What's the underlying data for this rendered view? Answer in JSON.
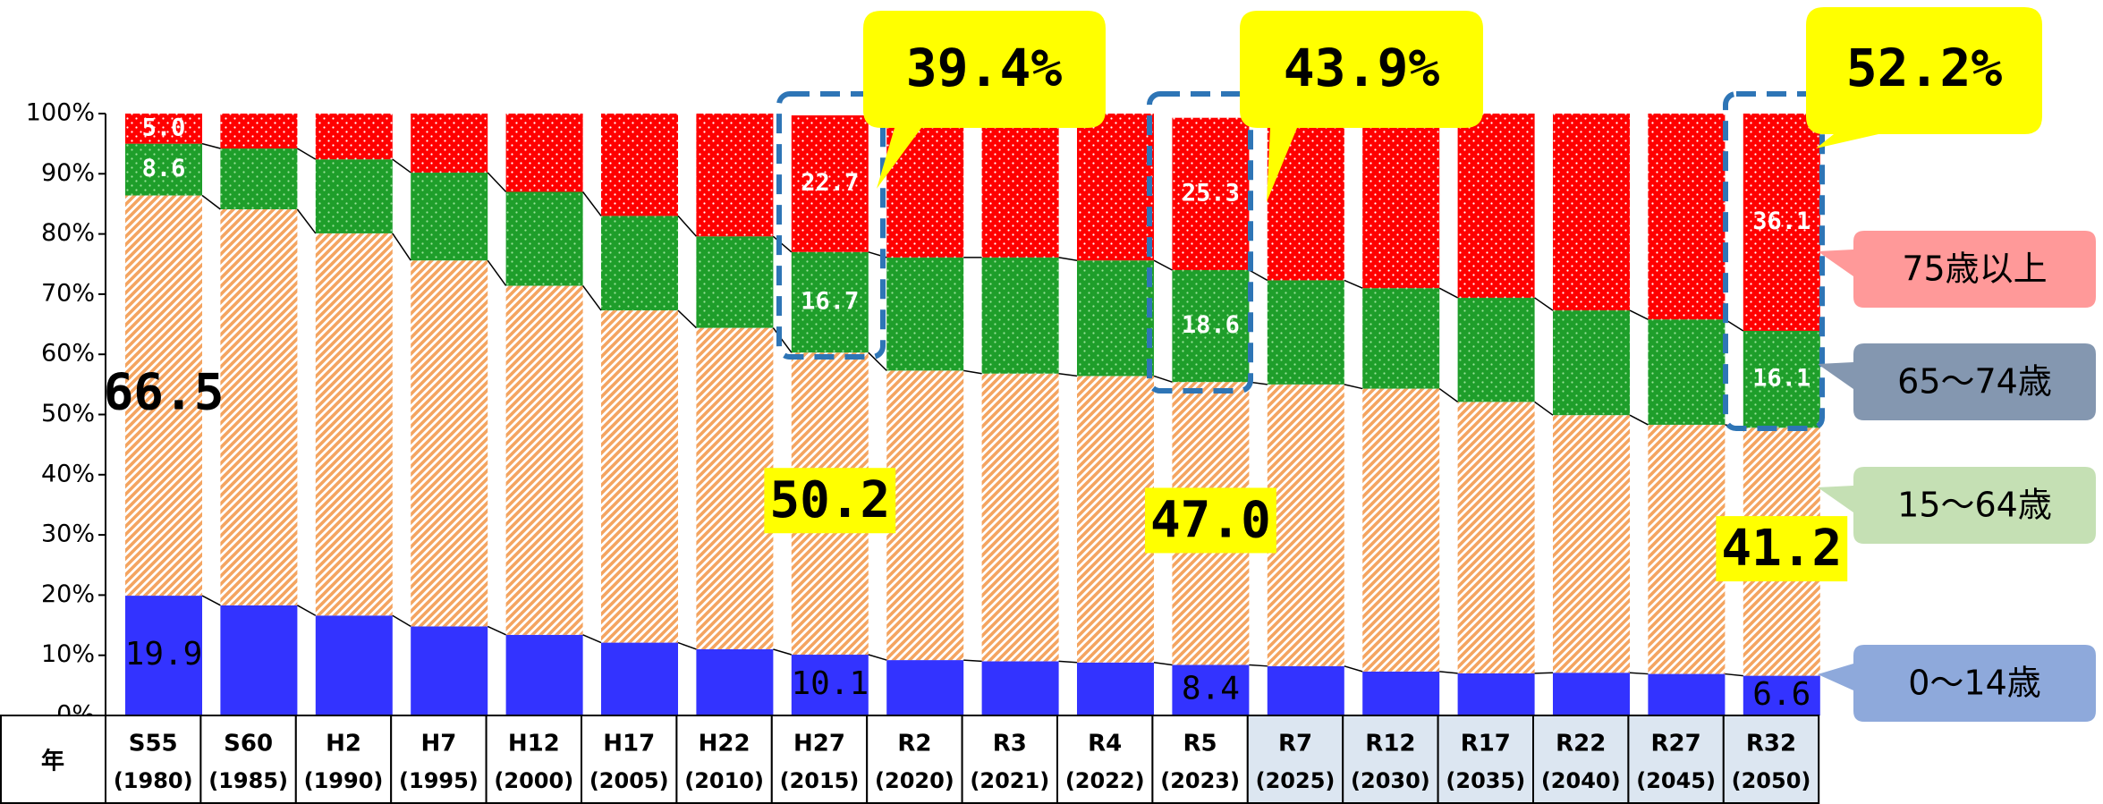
{
  "chart_data": {
    "type": "bar",
    "stacked": true,
    "x_header": "年",
    "categories": [
      "S55",
      "S60",
      "H2",
      "H7",
      "H12",
      "H17",
      "H22",
      "H27",
      "R2",
      "R3",
      "R4",
      "R5",
      "R7",
      "R12",
      "R17",
      "R22",
      "R27",
      "R32"
    ],
    "category_years": [
      "(1980)",
      "(1985)",
      "(1990)",
      "(1995)",
      "(2000)",
      "(2005)",
      "(2010)",
      "(2015)",
      "(2020)",
      "(2021)",
      "(2022)",
      "(2023)",
      "(2025)",
      "(2030)",
      "(2035)",
      "(2040)",
      "(2045)",
      "(2050)"
    ],
    "series": [
      {
        "name": "0～14歳",
        "color": "#3333ff",
        "legend_color": "#8ea9db",
        "values": [
          19.9,
          18.3,
          16.6,
          14.8,
          13.4,
          12.1,
          11.0,
          10.1,
          9.2,
          9.0,
          8.8,
          8.4,
          8.2,
          7.3,
          7.0,
          7.1,
          6.9,
          6.6
        ],
        "value_labels": [
          "19.9",
          null,
          null,
          null,
          null,
          null,
          null,
          "10.1",
          null,
          null,
          null,
          "8.4",
          null,
          null,
          null,
          null,
          null,
          "6.6"
        ]
      },
      {
        "name": "15～64歳",
        "color": "#f4a460",
        "legend_color": "#c5e0b4",
        "values": [
          66.5,
          65.8,
          63.5,
          60.8,
          58.0,
          55.2,
          53.4,
          50.2,
          48.1,
          47.8,
          47.6,
          47.0,
          46.8,
          47.0,
          45.1,
          42.8,
          41.4,
          41.2
        ],
        "value_labels": [
          "66.5",
          null,
          null,
          null,
          null,
          null,
          null,
          "50.2",
          null,
          null,
          null,
          "47.0",
          null,
          null,
          null,
          null,
          null,
          "41.2"
        ]
      },
      {
        "name": "65～74歳",
        "color": "#1e9e2a",
        "legend_color": "#8497b0",
        "values": [
          8.6,
          10.1,
          12.3,
          14.6,
          15.6,
          15.7,
          15.2,
          16.7,
          18.8,
          19.3,
          19.2,
          18.6,
          17.3,
          16.7,
          17.3,
          17.4,
          17.5,
          16.1
        ],
        "value_labels": [
          "8.6",
          null,
          null,
          null,
          null,
          null,
          null,
          "16.7",
          null,
          null,
          null,
          "18.6",
          null,
          null,
          null,
          null,
          null,
          "16.1"
        ]
      },
      {
        "name": "75歳以上",
        "color": "#ff0000",
        "legend_color": "#ff9999",
        "values": [
          5.0,
          5.8,
          7.6,
          9.8,
          13.0,
          17.0,
          20.4,
          22.7,
          23.9,
          23.9,
          24.4,
          25.3,
          27.7,
          28.9,
          30.6,
          32.7,
          34.2,
          36.1
        ],
        "value_labels": [
          "5.0",
          null,
          null,
          null,
          null,
          null,
          null,
          "22.7",
          null,
          null,
          null,
          "25.3",
          null,
          null,
          null,
          null,
          null,
          "36.1"
        ]
      }
    ],
    "annotations": [
      "39.4%",
      "43.9%",
      "52.2%"
    ],
    "ylim": [
      0,
      100
    ],
    "yticks": [
      {
        "value": 0,
        "label": "0%"
      },
      {
        "value": 10,
        "label": "10%"
      },
      {
        "value": 20,
        "label": "20%"
      },
      {
        "value": 30,
        "label": "30%"
      },
      {
        "value": 40,
        "label": "40%"
      },
      {
        "value": 50,
        "label": "50%"
      },
      {
        "value": 60,
        "label": "60%"
      },
      {
        "value": 70,
        "label": "70%"
      },
      {
        "value": 80,
        "label": "80%"
      },
      {
        "value": 90,
        "label": "90%"
      },
      {
        "value": 100,
        "label": "100%"
      }
    ],
    "grid": false
  }
}
